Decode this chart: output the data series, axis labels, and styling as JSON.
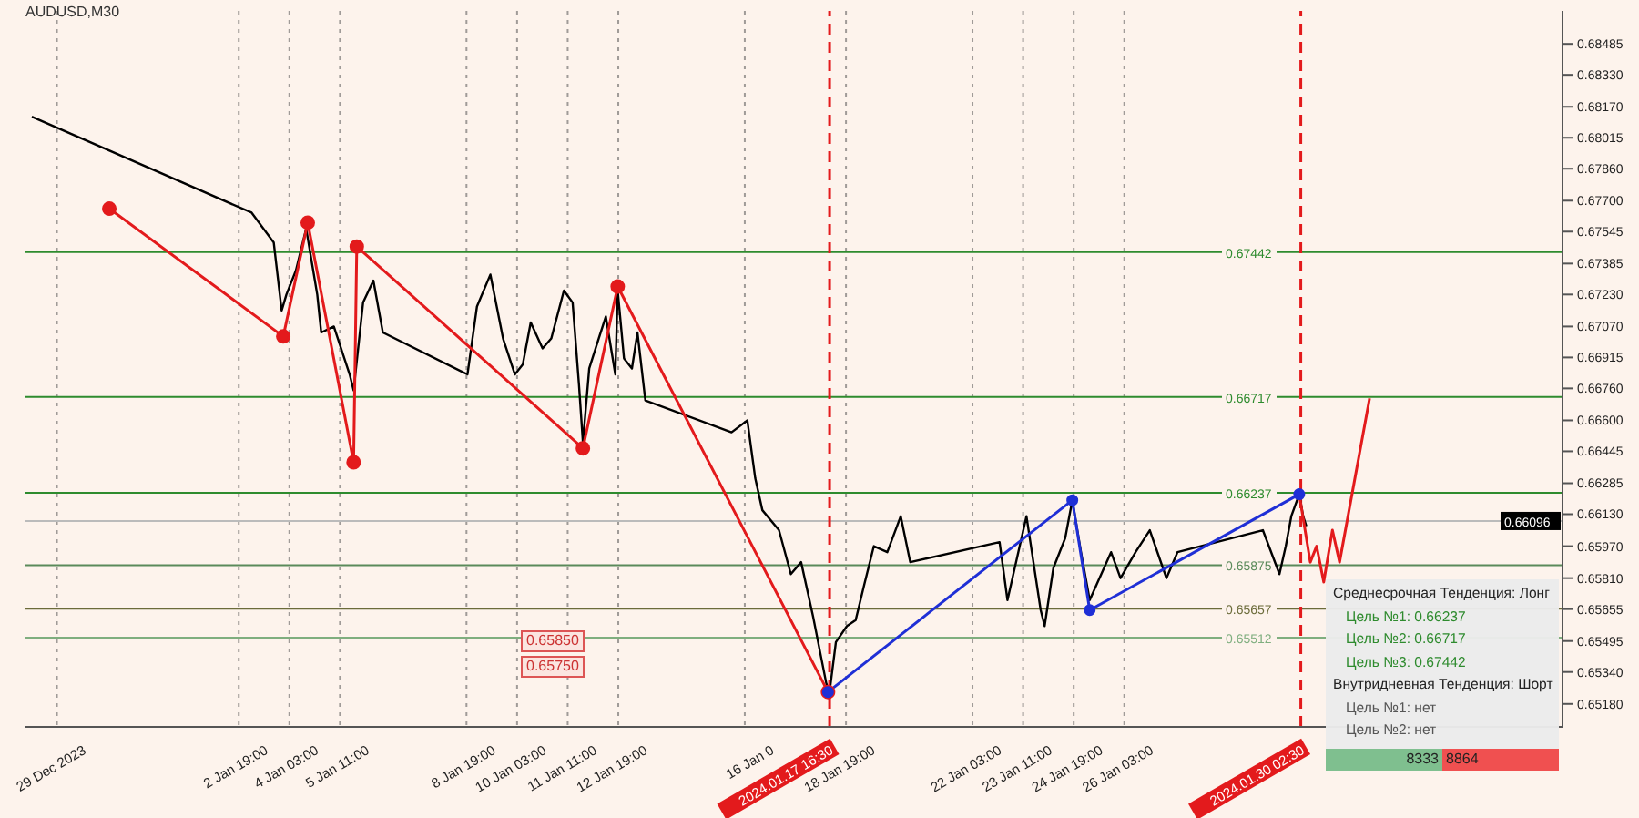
{
  "chart_data": {
    "type": "line",
    "title": "AUDUSD,M30",
    "xlim": [
      "2023-12-27T12:00",
      "2024-02-06T00:00"
    ],
    "xticks": [
      {
        "value": "2023-12-29",
        "label": "29 Dec 2023"
      },
      {
        "value": "2024-01-02T19:00",
        "label": "2 Jan 19:00"
      },
      {
        "value": "2024-01-04T03:00",
        "label": "4 Jan 03:00"
      },
      {
        "value": "2024-01-05T11:00",
        "label": "5 Jan 11:00"
      },
      {
        "value": "2024-01-08T19:00",
        "label": "8 Jan 19:00"
      },
      {
        "value": "2024-01-10T03:00",
        "label": "10 Jan 03:00"
      },
      {
        "value": "2024-01-11T11:00",
        "label": "11 Jan 11:00"
      },
      {
        "value": "2024-01-12T19:00",
        "label": "12 Jan 19:00"
      },
      {
        "value": "2024-01-16T03:00",
        "label": "16 Jan 0"
      },
      {
        "value": "2024-01-17T16:30",
        "label": "2024.01.17 16:30"
      },
      {
        "value": "2024-01-18T19:00",
        "label": "18 Jan 19:00"
      },
      {
        "value": "2024-01-22T03:00",
        "label": "22 Jan 03:00"
      },
      {
        "value": "2024-01-23T11:00",
        "label": "23 Jan 11:00"
      },
      {
        "value": "2024-01-24T19:00",
        "label": "24 Jan 19:00"
      },
      {
        "value": "2024-01-26T03:00",
        "label": "26 Jan 03:00"
      },
      {
        "value": "2024-01-30T02:30",
        "label": "2024.01.30 02:30"
      }
    ],
    "ylim": [
      0.65065,
      0.6865
    ],
    "yticks": [
      0.68485,
      {
        "value": 0.6833,
        "label": "0.68330"
      },
      {
        "value": 0.6817,
        "label": "0.68170"
      },
      0.68015,
      {
        "value": 0.6786,
        "label": "0.67860"
      },
      {
        "value": 0.677,
        "label": "0.67700"
      },
      0.67545,
      0.67385,
      {
        "value": 0.6723,
        "label": "0.67230"
      },
      {
        "value": 0.6707,
        "label": "0.67070"
      },
      0.66915,
      {
        "value": 0.6676,
        "label": "0.66760"
      },
      {
        "value": 0.666,
        "label": "0.66600"
      },
      0.66445,
      0.66285,
      {
        "value": 0.6613,
        "label": "0.66130"
      },
      {
        "value": 0.6597,
        "label": "0.65970"
      },
      {
        "value": 0.6581,
        "label": "0.65810"
      },
      0.65655,
      0.65495,
      {
        "value": 0.6534,
        "label": "0.65340"
      },
      {
        "value": 0.6518,
        "label": "0.65180"
      }
    ],
    "grid": "x",
    "series": [
      {
        "color": "#000000",
        "marker": "none",
        "x": [
          "2023-12-27T16:00",
          "2024-01-02T11:00",
          "2024-01-03T01:00",
          "2024-01-03T06:00",
          "2024-01-03T09:00",
          "2024-01-03T15:00",
          "2024-01-03T21:30",
          "2024-01-04T04:30",
          "2024-01-04T07:00",
          "2024-01-04T15:00",
          "2024-01-05T01:00",
          "2024-01-05T03:30",
          "2024-01-05T09:30",
          "2024-01-05T16:00",
          "2024-01-05T22:00",
          "2024-01-08T03:30",
          "2024-01-08T09:30",
          "2024-01-08T18:00",
          "2024-01-09T02:00",
          "2024-01-09T09:30",
          "2024-01-09T14:30",
          "2024-01-09T19:30",
          "2024-01-10T03:00",
          "2024-01-10T08:30",
          "2024-01-10T16:30",
          "2024-01-10T22:00",
          "2024-01-11T02:00",
          "2024-01-11T04:30",
          "2024-01-11T08:30",
          "2024-01-11T14:30",
          "2024-01-11T19:00",
          "2024-01-12T01:00",
          "2024-01-12T02:30",
          "2024-01-12T06:30",
          "2024-01-12T11:30",
          "2024-01-12T15:00",
          "2024-01-12T20:00",
          "2024-01-15T02:30",
          "2024-01-15T12:30",
          "2024-01-15T17:30",
          "2024-01-15T22:00",
          "2024-01-16T08:30",
          "2024-01-16T16:00",
          "2024-01-16T22:30",
          "2024-01-17T06:00",
          "2024-01-17T14:30",
          "2024-01-17T16:30",
          "2024-01-17T20:30",
          "2024-01-18T03:30",
          "2024-01-18T09:00",
          "2024-01-18T14:30",
          "2024-01-18T20:30",
          "2024-01-19T05:00",
          "2024-01-19T13:30",
          "2024-01-19T19:30",
          "2024-01-22T04:00",
          "2024-01-22T09:00",
          "2024-01-22T21:00",
          "2024-01-23T06:00",
          "2024-01-23T08:30",
          "2024-01-23T14:00",
          "2024-01-23T21:30",
          "2024-01-24T02:00",
          "2024-01-24T07:30",
          "2024-01-24T13:00",
          "2024-01-24T17:30",
          "2024-01-25T02:30",
          "2024-01-25T08:30",
          "2024-01-25T18:00",
          "2024-01-26T03:00",
          "2024-01-26T13:30",
          "2024-01-26T20:30",
          "2024-01-29T02:30",
          "2024-01-29T13:00",
          "2024-01-29T17:00",
          "2024-01-29T20:30",
          "2024-01-30T01:30",
          "2024-01-30T04:00",
          "2024-01-30T06:00"
        ],
        "values": [
          0.6812,
          0.6764,
          0.6749,
          0.6715,
          0.6723,
          0.6735,
          0.6756,
          0.6723,
          0.6704,
          0.6707,
          0.6683,
          0.6675,
          0.6719,
          0.673,
          0.6704,
          0.6683,
          0.6717,
          0.6733,
          0.6701,
          0.6683,
          0.6688,
          0.6709,
          0.6696,
          0.6701,
          0.6725,
          0.6719,
          0.6678,
          0.6649,
          0.6686,
          0.6701,
          0.6712,
          0.6683,
          0.6725,
          0.6691,
          0.6686,
          0.6704,
          0.667,
          0.6654,
          0.666,
          0.6631,
          0.6615,
          0.6605,
          0.6583,
          0.6589,
          0.6562,
          0.6528,
          0.6524,
          0.6549,
          0.6557,
          0.656,
          0.6578,
          0.6597,
          0.6594,
          0.6612,
          0.6589,
          0.6599,
          0.657,
          0.6612,
          0.6565,
          0.6557,
          0.6586,
          0.6601,
          0.662,
          0.6594,
          0.657,
          0.6578,
          0.6594,
          0.6581,
          0.6594,
          0.6605,
          0.6581,
          0.6594,
          0.6605,
          0.6583,
          0.6597,
          0.6612,
          0.6623,
          0.6612,
          0.6607
        ]
      },
      {
        "color": "#e31a1c",
        "marker": "circle",
        "x": [
          "2023-12-29T17:00",
          "2024-01-03T07:00",
          "2024-01-03T22:30",
          "2024-01-05T03:30",
          "2024-01-05T05:30",
          "2024-01-11T04:30",
          "2024-01-12T02:30",
          "2024-01-17T15:30"
        ],
        "values": [
          0.6766,
          0.6702,
          0.6759,
          0.6639,
          0.6747,
          0.6646,
          0.6727,
          0.6524
        ]
      },
      {
        "color": "#1f2fd6",
        "marker": "circle",
        "x": [
          "2024-01-17T15:30",
          "2024-01-24T02:00",
          "2024-01-24T13:00",
          "2024-01-30T01:30"
        ],
        "values": [
          0.6524,
          0.662,
          0.6565,
          0.6623
        ]
      },
      {
        "color": "#e31a1c",
        "marker": "none",
        "x": [
          "2024-01-30T01:30",
          "2024-01-30T08:30",
          "2024-01-30T12:30",
          "2024-01-30T17:00",
          "2024-01-30T22:30",
          "2024-01-31T03:00",
          "2024-01-31T22:00"
        ],
        "values": [
          0.6623,
          0.6589,
          0.6597,
          0.6579,
          0.6605,
          0.6589,
          0.6671
        ]
      }
    ],
    "ref_lines": [
      {
        "axis": "y",
        "value": 0.67442,
        "label": "0.67442",
        "color": "#2e8b2e"
      },
      {
        "axis": "y",
        "value": 0.66717,
        "label": "0.66717",
        "color": "#2e8b2e"
      },
      {
        "axis": "y",
        "value": 0.66237,
        "label": "0.66237",
        "color": "#2e8b2e"
      },
      {
        "axis": "y",
        "value": 0.65875,
        "label": "0.65875",
        "color": "#5a8a5a"
      },
      {
        "axis": "y",
        "value": 0.65657,
        "label": "0.65657",
        "color": "#6b6b3a"
      },
      {
        "axis": "y",
        "value": 0.65512,
        "label": "0.65512",
        "color": "#7fae7f"
      },
      {
        "axis": "y",
        "value": 0.66096,
        "label": "0.66096",
        "color": "#bbbbbb"
      },
      {
        "axis": "x",
        "value": "2024-01-17T16:30",
        "color": "#e31a1c",
        "line_style": "dashed"
      },
      {
        "axis": "x",
        "value": "2024-01-30T02:30",
        "color": "#e31a1c",
        "line_style": "dashed"
      }
    ],
    "annotations": [
      "0.65850",
      "0.65750",
      "Среднесрочная Тенденция: Лонг",
      "Цель №1: 0.66237",
      "Цель №2: 0.66717",
      "Цель №3: 0.67442",
      "Внутридневная Тенденция: Шорт",
      "Цель №1: нет",
      "Цель №2: нет",
      "8333",
      "8864"
    ]
  }
}
